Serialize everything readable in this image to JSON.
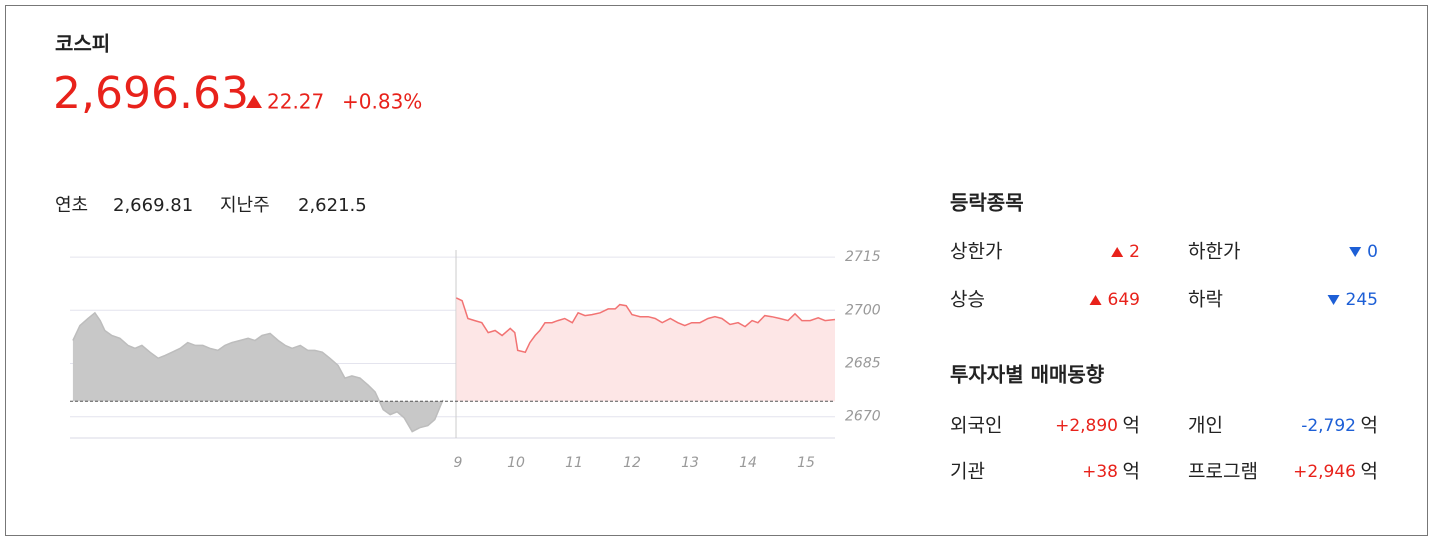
{
  "header": {
    "title": "코스피",
    "price": "2,696.63",
    "change": "22.27",
    "change_pct": "+0.83%"
  },
  "summary": [
    {
      "label": "연초",
      "value": "2,669.81"
    },
    {
      "label": "지난주",
      "value": "2,621.5"
    }
  ],
  "breadth": {
    "title": "등락종목",
    "items": [
      {
        "label": "상한가",
        "value": 2,
        "dir": "up"
      },
      {
        "label": "하한가",
        "value": 0,
        "dir": "down"
      },
      {
        "label": "상승",
        "value": 649,
        "dir": "up"
      },
      {
        "label": "하락",
        "value": 245,
        "dir": "down"
      }
    ]
  },
  "investors": {
    "title": "투자자별 매매동향",
    "unit": "억",
    "items": [
      {
        "label": "외국인",
        "value": "+2,890",
        "dir": "up"
      },
      {
        "label": "개인",
        "value": "-2,792",
        "dir": "down"
      },
      {
        "label": "기관",
        "value": "+38",
        "dir": "up"
      },
      {
        "label": "프로그램",
        "value": "+2,946",
        "dir": "up"
      }
    ]
  },
  "chart_data": {
    "type": "area",
    "xlim": [
      2.31,
      15.5
    ],
    "xticks": [
      9,
      10,
      11,
      12,
      13,
      14,
      15
    ],
    "ylim": [
      2664,
      2717
    ],
    "yticks": [
      2670,
      2685,
      2700,
      2715
    ],
    "grid": true,
    "baseline": 2674.36,
    "series": [
      {
        "color": "#bdbdbd",
        "fill": "#c8c8c8",
        "x": [
          2.36,
          2.48,
          2.62,
          2.74,
          2.83,
          2.91,
          3.03,
          3.17,
          3.31,
          3.43,
          3.55,
          3.69,
          3.83,
          3.95,
          4.07,
          4.21,
          4.34,
          4.47,
          4.6,
          4.72,
          4.86,
          4.98,
          5.1,
          5.24,
          5.38,
          5.5,
          5.62,
          5.76,
          5.9,
          6.02,
          6.14,
          6.28,
          6.41,
          6.53,
          6.66,
          6.79,
          6.93,
          7.05,
          7.17,
          7.31,
          7.45,
          7.57,
          7.71,
          7.83,
          7.95,
          8.07,
          8.21,
          8.34,
          8.48,
          8.6,
          8.74
        ],
        "values": [
          2691.5,
          2695.7,
          2697.7,
          2699.3,
          2697.1,
          2694.3,
          2692.9,
          2692.1,
          2690.1,
          2689.3,
          2690.1,
          2688.2,
          2686.5,
          2687.3,
          2688.2,
          2689.3,
          2690.9,
          2690.1,
          2690.1,
          2689.3,
          2688.7,
          2690.1,
          2690.9,
          2691.5,
          2692.1,
          2691.5,
          2692.9,
          2693.5,
          2691.5,
          2690.1,
          2689.3,
          2690.1,
          2688.7,
          2688.7,
          2688.2,
          2686.5,
          2684.5,
          2680.9,
          2681.5,
          2680.9,
          2678.9,
          2677.0,
          2672.0,
          2670.6,
          2671.4,
          2669.7,
          2665.8,
          2666.9,
          2667.5,
          2669.2,
          2674.7
        ]
      },
      {
        "color": "#f27373",
        "fill": "#fde6e6",
        "x": [
          8.97,
          9.07,
          9.17,
          9.29,
          9.41,
          9.52,
          9.64,
          9.76,
          9.9,
          9.98,
          10.03,
          10.16,
          10.24,
          10.33,
          10.41,
          10.5,
          10.62,
          10.72,
          10.84,
          10.97,
          11.07,
          11.19,
          11.31,
          11.45,
          11.59,
          11.71,
          11.79,
          11.9,
          12.0,
          12.14,
          12.28,
          12.4,
          12.52,
          12.66,
          12.79,
          12.91,
          13.03,
          13.17,
          13.31,
          13.43,
          13.55,
          13.69,
          13.83,
          13.95,
          14.07,
          14.17,
          14.29,
          14.41,
          14.55,
          14.69,
          14.81,
          14.93,
          15.07,
          15.21,
          15.33,
          15.5
        ],
        "values": [
          2703.5,
          2702.7,
          2697.7,
          2697.1,
          2696.5,
          2693.7,
          2694.3,
          2692.9,
          2694.9,
          2693.7,
          2688.7,
          2688.2,
          2690.9,
          2692.9,
          2694.3,
          2696.5,
          2696.5,
          2697.1,
          2697.7,
          2696.5,
          2699.3,
          2698.5,
          2698.8,
          2699.3,
          2700.4,
          2700.4,
          2701.6,
          2701.3,
          2698.8,
          2698.2,
          2698.2,
          2697.7,
          2696.5,
          2697.7,
          2696.5,
          2695.7,
          2696.5,
          2696.5,
          2697.7,
          2698.2,
          2697.7,
          2696.0,
          2696.5,
          2695.4,
          2697.1,
          2696.5,
          2698.5,
          2698.2,
          2697.7,
          2697.1,
          2699.0,
          2697.1,
          2697.1,
          2697.9,
          2697.1,
          2697.4
        ]
      }
    ]
  }
}
